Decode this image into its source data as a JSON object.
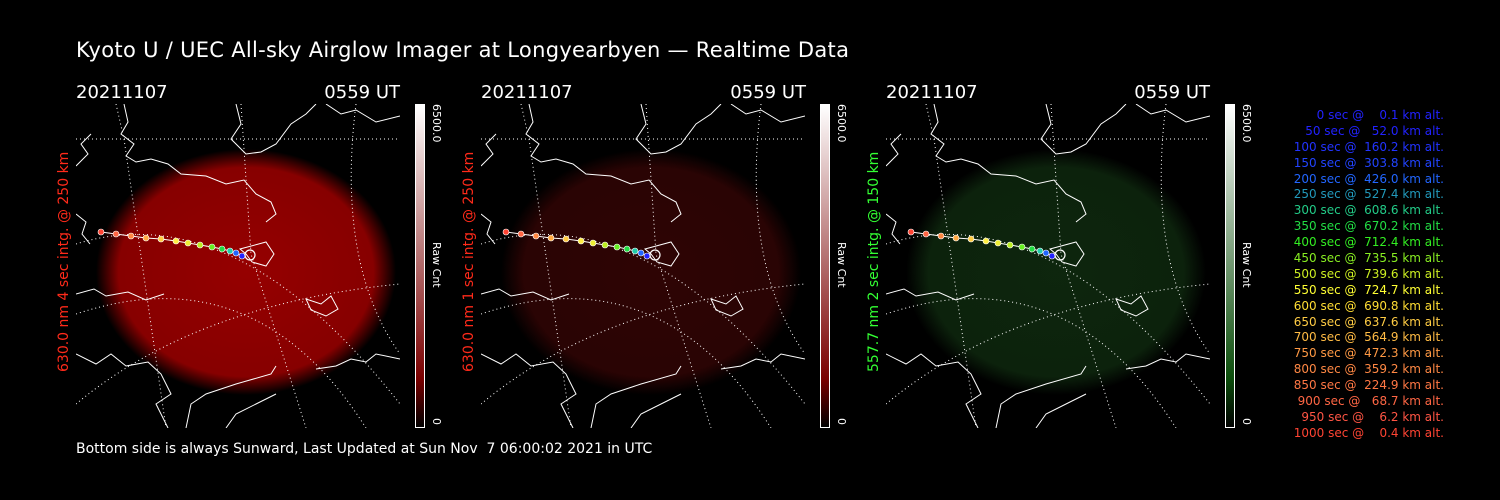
{
  "title": "Kyoto U / UEC All-sky Airglow Imager at Longyearbyen — Realtime Data",
  "panels": [
    {
      "date": "20211107",
      "time": "0559 UT",
      "label": "630.0 nm 4 sec intg. @ 250 km",
      "label_color": "#ff2a1a",
      "cmax": "6500.0",
      "cmin": "0",
      "unit": "Raw Cnt",
      "glow": "#b00000",
      "glow_opacity": 0.85,
      "bar_top": "#ffffff",
      "bar_bottom": "#7a0000"
    },
    {
      "date": "20211107",
      "time": "0559 UT",
      "label": "630.0 nm 1 sec intg. @ 250 km",
      "label_color": "#ff2a1a",
      "cmax": "6500.0",
      "cmin": "0",
      "unit": "Raw Cnt",
      "glow": "#3a0505",
      "glow_opacity": 0.8,
      "bar_top": "#ffffff",
      "bar_bottom": "#7a0000"
    },
    {
      "date": "20211107",
      "time": "0559 UT",
      "label": "557.7 nm 2 sec intg. @ 150 km",
      "label_color": "#33ff33",
      "cmax": "6500.0",
      "cmin": "0",
      "unit": "Raw Cnt",
      "glow": "#0f2a0f",
      "glow_opacity": 0.9,
      "bar_top": "#ffffff",
      "bar_bottom": "#0b4d0b"
    }
  ],
  "legend": [
    {
      "text": "   0 sec @    0.1 km alt.",
      "color": "#2222ff"
    },
    {
      "text": "  50 sec @   52.0 km alt.",
      "color": "#2222ff"
    },
    {
      "text": " 100 sec @  160.2 km alt.",
      "color": "#2233ff"
    },
    {
      "text": " 150 sec @  303.8 km alt.",
      "color": "#2244ff"
    },
    {
      "text": " 200 sec @  426.0 km alt.",
      "color": "#2266ff"
    },
    {
      "text": " 250 sec @  527.4 km alt.",
      "color": "#2299bb"
    },
    {
      "text": " 300 sec @  608.6 km alt.",
      "color": "#22cc88"
    },
    {
      "text": " 350 sec @  670.2 km alt.",
      "color": "#22dd44"
    },
    {
      "text": " 400 sec @  712.4 km alt.",
      "color": "#33ee22"
    },
    {
      "text": " 450 sec @  735.5 km alt.",
      "color": "#88ee22"
    },
    {
      "text": " 500 sec @  739.6 km alt.",
      "color": "#ccee22"
    },
    {
      "text": " 550 sec @  724.7 km alt.",
      "color": "#ffff33"
    },
    {
      "text": " 600 sec @  690.8 km alt.",
      "color": "#ffdd33"
    },
    {
      "text": " 650 sec @  637.6 km alt.",
      "color": "#ffcc44"
    },
    {
      "text": " 700 sec @  564.9 km alt.",
      "color": "#ffbb44"
    },
    {
      "text": " 750 sec @  472.3 km alt.",
      "color": "#ff9944"
    },
    {
      "text": " 800 sec @  359.2 km alt.",
      "color": "#ff8844"
    },
    {
      "text": " 850 sec @  224.9 km alt.",
      "color": "#ff7744"
    },
    {
      "text": " 900 sec @   68.7 km alt.",
      "color": "#ff6644"
    },
    {
      "text": " 950 sec @    6.2 km alt.",
      "color": "#ff5544"
    },
    {
      "text": "1000 sec @    0.4 km alt.",
      "color": "#ff4433"
    }
  ],
  "footer": "Bottom side is always Sunward, Last Updated at Sun Nov  7 06:00:02 2021 in UTC"
}
